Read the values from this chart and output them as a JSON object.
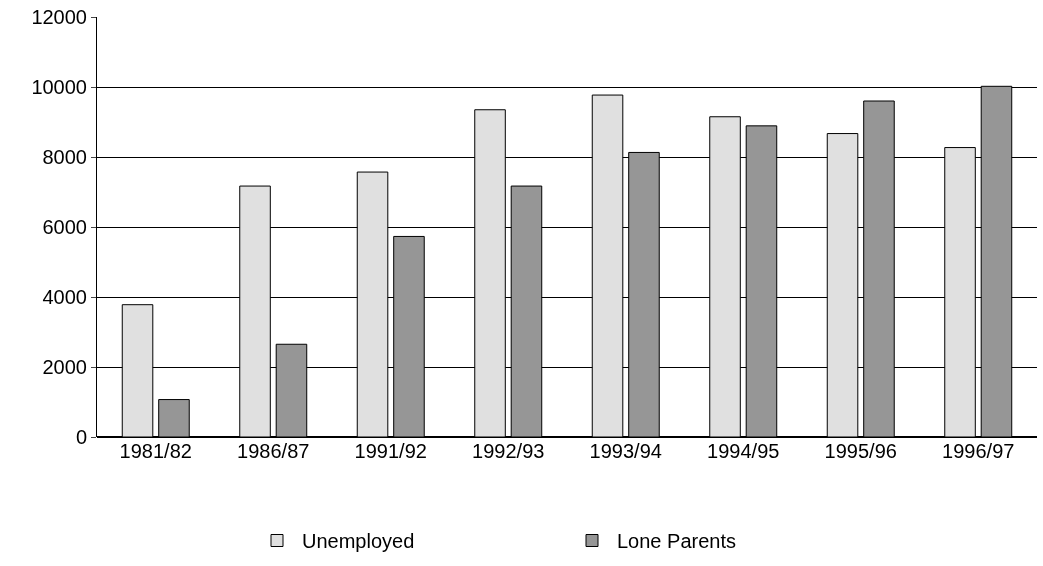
{
  "chart_data": {
    "type": "bar",
    "categories": [
      "1981/82",
      "1986/87",
      "1991/92",
      "1992/93",
      "1993/94",
      "1994/95",
      "1995/96",
      "1996/97"
    ],
    "series": [
      {
        "name": "Unemployed",
        "color": "#e0e0e0",
        "values": [
          3780,
          7170,
          7570,
          9350,
          9770,
          9150,
          8670,
          8270
        ]
      },
      {
        "name": "Lone Parents",
        "color": "#969696",
        "values": [
          1070,
          2650,
          5730,
          7170,
          8130,
          8890,
          9600,
          10020
        ]
      }
    ],
    "ylim": [
      0,
      12000
    ],
    "yticks": [
      0,
      2000,
      4000,
      6000,
      8000,
      10000,
      12000
    ],
    "grid": "y",
    "legend": "bottom"
  }
}
